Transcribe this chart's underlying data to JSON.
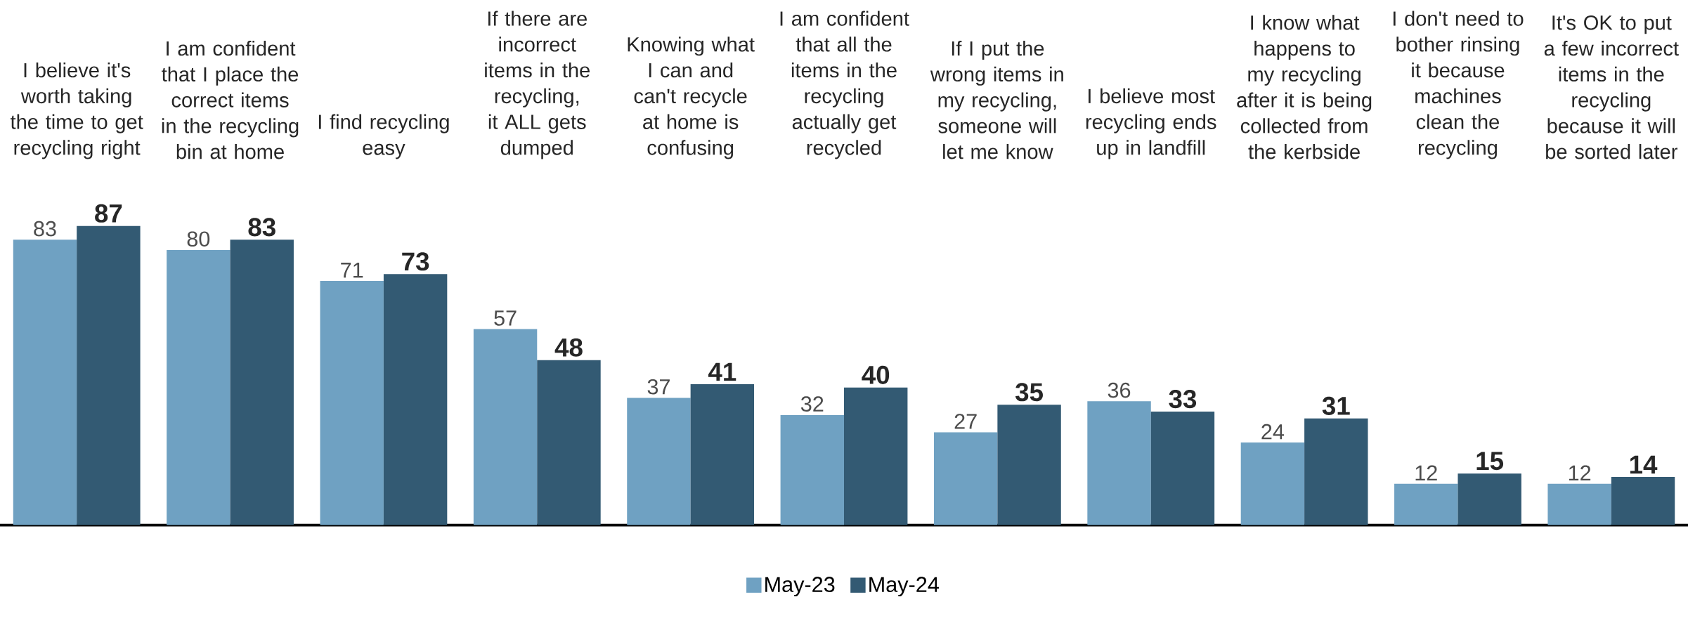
{
  "chart_data": {
    "type": "bar",
    "categories": [
      "I believe it's worth taking the time to get recycling right",
      "I am confident that I place the correct items in the recycling bin at home",
      "I find recycling easy",
      "If there are incorrect items in the recycling, it ALL gets dumped",
      "Knowing what I can and can't recycle at home is confusing",
      "I am confident that all the items in the recycling actually get recycled",
      "If I put the wrong items in my recycling, someone will let me know",
      "I believe most recycling ends up in landfill",
      "I know what happens to my recycling after it is being collected from the kerbside",
      "I don't need to bother rinsing it because machines clean the recycling",
      "It's OK to put a few incorrect items in the recycling because it will be sorted later"
    ],
    "series": [
      {
        "name": "May-23",
        "color": "#6fa1c2",
        "values": [
          83,
          80,
          71,
          57,
          37,
          32,
          27,
          36,
          24,
          12,
          12
        ]
      },
      {
        "name": "May-24",
        "color": "#335a73",
        "values": [
          87,
          83,
          73,
          48,
          41,
          40,
          35,
          33,
          31,
          15,
          14
        ]
      }
    ],
    "data_labels": true,
    "legend": "bottom"
  }
}
